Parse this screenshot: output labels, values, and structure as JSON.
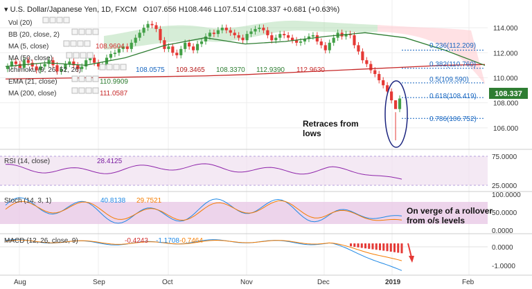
{
  "header": {
    "title": "U.S. Dollar/Japanese Yen, 1D, FXCM",
    "ohlc": "O107.656  H108.446  L107.514  C108.337  +0.681 (+0.63%)"
  },
  "indicators": [
    {
      "label": "Vol (20)"
    },
    {
      "label": "BB (20, close, 2)"
    },
    {
      "label": "MA (5, close)",
      "value": "108.9604",
      "color": "#d32f2f"
    },
    {
      "label": "MA (50, close)"
    },
    {
      "label": "Ichimoku (9, 26, 52, 26)",
      "values": [
        "108.0575",
        "109.3465",
        "108.3370",
        "112.9390",
        "112.9630"
      ],
      "colors": [
        "#1565c0",
        "#b71c1c",
        "#2e7d32",
        "#2e7d32",
        "#c62828"
      ]
    },
    {
      "label": "EMA (21, close)",
      "value": "110.9909",
      "color": "#2e7d32"
    },
    {
      "label": "MA (200, close)",
      "value": "111.0587",
      "color": "#c62828"
    }
  ],
  "annotations": {
    "retrace": [
      "Retraces from",
      "lows"
    ],
    "rollover": [
      "On verge of a rollover",
      "from o/s levels"
    ]
  },
  "fib_labels": [
    "0.236(112.209)",
    "0.382(110.760)",
    "0.5(109.590)",
    "0.618(108.419)",
    "0.786(106.752)"
  ],
  "price_tag": "108.337",
  "x_labels": [
    "Aug",
    "Sep",
    "Oct",
    "Nov",
    "Dec",
    "2019",
    "Feb"
  ],
  "rsi_panel": {
    "label": "RSI (14, close)",
    "value": "28.4125",
    "value_color": "#7b1fa2",
    "axis": [
      "75.0000",
      "25.0000"
    ]
  },
  "stoch_panel": {
    "label": "Stoch (14, 3, 1)",
    "k": "40.8138",
    "d": "29.7521",
    "k_color": "#1e88e5",
    "d_color": "#f57c00",
    "axis": [
      "100.0000",
      "50.0000",
      "0.0000"
    ]
  },
  "macd_panel": {
    "label": "MACD (12, 26, close, 9)",
    "hist": "-0.4243",
    "macd": "-1.1708",
    "signal": "-0.7464",
    "colors": [
      "#d32f2f",
      "#1e88e5",
      "#f57c00"
    ],
    "axis": [
      "0.0000",
      "-1.0000"
    ]
  },
  "chart_data": {
    "type": "candlestick",
    "title": "U.S. Dollar/Japanese Yen, 1D, FXCM",
    "ylim": [
      104.5,
      115.0
    ],
    "yticks": [
      106,
      108,
      110,
      112,
      114
    ],
    "fib_levels": [
      {
        "ratio": 0.236,
        "price": 112.209
      },
      {
        "ratio": 0.382,
        "price": 110.76
      },
      {
        "ratio": 0.5,
        "price": 109.59
      },
      {
        "ratio": 0.618,
        "price": 108.419
      },
      {
        "ratio": 0.786,
        "price": 106.752
      }
    ],
    "last_close": 108.337,
    "series": [
      {
        "name": "MA (200, close)",
        "color": "#c62828",
        "values": [
          109.9,
          109.95,
          110.0,
          110.05,
          110.1,
          110.15,
          110.25,
          110.4,
          110.55,
          110.7,
          110.85,
          111.0,
          111.06
        ]
      },
      {
        "name": "EMA (21, close)",
        "color": "#2e7d32",
        "values": [
          110.9,
          111.2,
          111.0,
          111.6,
          112.6,
          113.2,
          112.7,
          112.9,
          113.3,
          113.6,
          113.2,
          112.2,
          110.99
        ]
      }
    ],
    "candles": [
      110.9,
      111.3,
      111.1,
      110.8,
      111.4,
      111.2,
      110.9,
      110.6,
      110.9,
      111.1,
      111.4,
      111.0,
      110.5,
      110.7,
      111.1,
      111.3,
      111.0,
      110.7,
      110.9,
      111.4,
      111.6,
      111.2,
      110.9,
      111.0,
      111.6,
      111.9,
      112.0,
      112.3,
      112.5,
      112.3,
      112.8,
      113.2,
      113.6,
      114.0,
      114.3,
      114.2,
      113.9,
      113.0,
      112.3,
      112.5,
      112.0,
      111.8,
      112.3,
      112.8,
      112.5,
      112.2,
      112.7,
      112.9,
      113.3,
      113.6,
      113.5,
      113.8,
      114.0,
      113.8,
      113.6,
      113.4,
      113.2,
      113.0,
      113.5,
      113.7,
      113.9,
      114.0,
      113.8,
      113.4,
      113.0,
      113.2,
      113.5,
      113.4,
      113.2,
      113.0,
      112.8,
      112.9,
      113.1,
      113.3,
      113.4,
      112.9,
      112.6,
      112.2,
      112.8,
      113.2,
      113.6,
      113.3,
      113.5,
      113.4,
      112.6,
      112.1,
      111.4,
      111.1,
      110.6,
      110.3,
      109.8,
      109.4,
      108.9,
      108.2,
      107.5,
      108.34
    ],
    "rsi": {
      "type": "line",
      "ylim": [
        0,
        100
      ],
      "ticks": [
        75,
        25
      ],
      "last": 28.41
    },
    "stoch": {
      "type": "line",
      "ylim": [
        0,
        100
      ],
      "ticks": [
        100,
        50,
        0
      ],
      "k_last": 40.81,
      "d_last": 29.75
    },
    "macd": {
      "type": "line",
      "ylim": [
        -1.2,
        0.3
      ],
      "ticks": [
        0,
        -1
      ],
      "hist_last": -0.4243,
      "macd_last": -1.1708,
      "signal_last": -0.7464
    }
  }
}
